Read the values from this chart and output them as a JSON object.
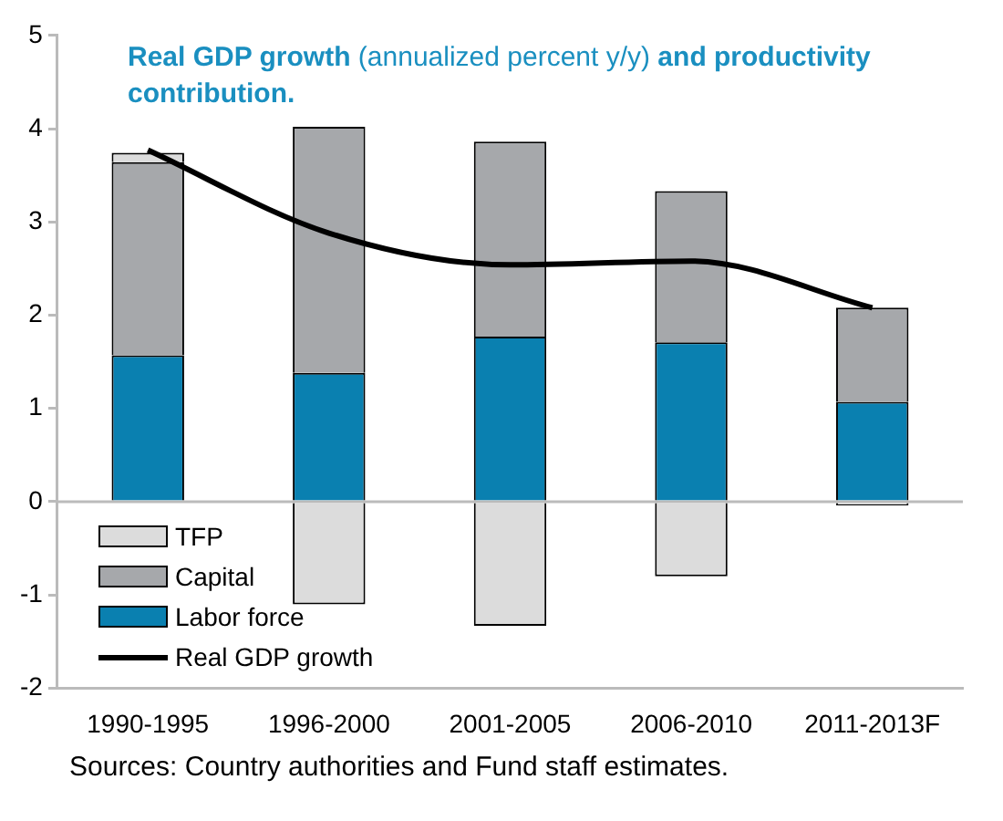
{
  "chart_data": {
    "type": "bar",
    "title": "Real GDP growth (annualized percent y/y) and productivity contribution.",
    "categories": [
      "1990-1995",
      "1996-2000",
      "2001-2005",
      "2006-2010",
      "2011-2013F"
    ],
    "stacked": true,
    "series": [
      {
        "name": "Labor force",
        "color": "#0a80b0",
        "values": [
          1.57,
          1.38,
          1.77,
          1.71,
          1.07
        ]
      },
      {
        "name": "Capital",
        "color": "#a6a8ab",
        "values": [
          2.07,
          2.64,
          2.09,
          1.62,
          1.01
        ]
      },
      {
        "name": "TFP",
        "color": "#dcdcdc",
        "values": [
          0.1,
          -1.1,
          -1.33,
          -0.8,
          -0.04
        ]
      },
      {
        "name": "Real GDP growth",
        "type": "line",
        "color": "#000000",
        "values": [
          3.77,
          2.88,
          2.54,
          2.58,
          2.08
        ]
      }
    ],
    "ref_lines": [
      {
        "axis": "y",
        "value": 0,
        "color": "#bbbbbb"
      }
    ],
    "ylim": [
      -2,
      5
    ],
    "yticks": [
      -2,
      -1,
      0,
      1,
      2,
      3,
      4,
      5
    ],
    "grid": false,
    "legend": "bottom left",
    "marker": "none",
    "annotations": [
      "Sources: Country authorities and Fund staff estimates."
    ]
  }
}
